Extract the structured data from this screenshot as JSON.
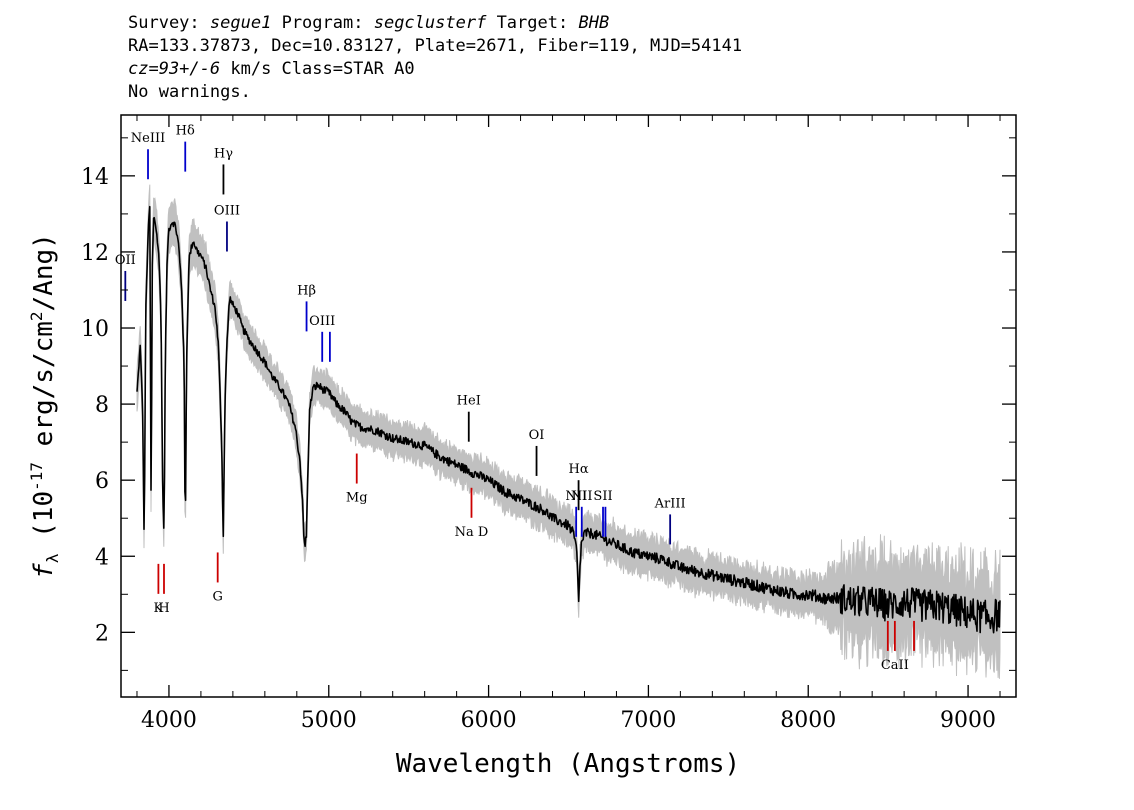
{
  "header": {
    "survey_label": "Survey:",
    "survey": "segue1",
    "program_label": "Program:",
    "program": "segclusterf",
    "target_label": "Target:",
    "target": "BHB",
    "line2": "RA=133.37873, Dec=10.83127, Plate=2671, Fiber=119, MJD=54141",
    "cz_label": "cz=93+/-6",
    "cz_rest": " km/s Class=STAR A0",
    "line4": "No warnings."
  },
  "chart_data": {
    "type": "line",
    "xlabel": "Wavelength (Angstroms)",
    "ylabel": "f_λ (10^-17 erg/s/cm^2/Ang)",
    "ylabel_parts": {
      "f": "f",
      "lambda": "λ",
      "base": " (10",
      "exp1": "-17",
      "mid": " erg/s/cm",
      "exp2": "2",
      "tail": "/Ang)"
    },
    "xlim": [
      3700,
      9300
    ],
    "ylim": [
      0.3,
      15.6
    ],
    "xticks": [
      4000,
      5000,
      6000,
      7000,
      8000,
      9000
    ],
    "xtick_labels": [
      "4000",
      "5000",
      "6000",
      "7000",
      "8000",
      "9000"
    ],
    "yticks": [
      2,
      4,
      6,
      8,
      10,
      12,
      14
    ],
    "ytick_labels": [
      "2",
      "4",
      "6",
      "8",
      "10",
      "12",
      "14"
    ],
    "series": [
      {
        "role": "flux",
        "color": "#000000",
        "x": [
          3800,
          3820,
          3835,
          3845,
          3855,
          3870,
          3880,
          3889,
          3895,
          3905,
          3920,
          3935,
          3950,
          3960,
          3969,
          3978,
          3990,
          4000,
          4020,
          4040,
          4060,
          4080,
          4095,
          4102,
          4110,
          4125,
          4150,
          4180,
          4200,
          4230,
          4260,
          4290,
          4310,
          4330,
          4340,
          4350,
          4365,
          4380,
          4400,
          4430,
          4460,
          4500,
          4550,
          4600,
          4650,
          4700,
          4750,
          4790,
          4820,
          4835,
          4845,
          4852,
          4861,
          4868,
          4880,
          4900,
          4930,
          4960,
          5000,
          5050,
          5100,
          5150,
          5200,
          5300,
          5400,
          5500,
          5600,
          5700,
          5800,
          5900,
          6000,
          6100,
          6200,
          6300,
          6350,
          6400,
          6450,
          6500,
          6530,
          6550,
          6558,
          6563,
          6568,
          6580,
          6600,
          6650,
          6700,
          6800,
          6900,
          7000,
          7100,
          7200,
          7300,
          7400,
          7500,
          7600,
          7700,
          7800,
          7900,
          8000,
          8100,
          8200,
          8300,
          8400,
          8500,
          8600,
          8700,
          8800,
          8900,
          9000,
          9100,
          9150,
          9200
        ],
        "y": [
          8.3,
          9.5,
          8.0,
          4.3,
          10.5,
          12.5,
          13.2,
          4.8,
          11.5,
          13.0,
          12.6,
          12.0,
          10.5,
          6.0,
          4.5,
          9.5,
          12.0,
          12.6,
          12.8,
          12.7,
          12.2,
          11.0,
          9.0,
          4.3,
          9.0,
          11.8,
          12.3,
          12.0,
          11.9,
          11.6,
          11.0,
          10.5,
          9.5,
          7.0,
          4.5,
          8.0,
          9.8,
          10.8,
          10.6,
          10.4,
          10.0,
          9.7,
          9.4,
          9.1,
          8.7,
          8.4,
          8.0,
          7.4,
          6.5,
          5.5,
          4.4,
          4.3,
          4.6,
          6.0,
          7.8,
          8.4,
          8.5,
          8.4,
          8.3,
          8.0,
          7.8,
          7.5,
          7.4,
          7.3,
          7.1,
          7.0,
          6.9,
          6.6,
          6.4,
          6.2,
          6.0,
          5.7,
          5.5,
          5.3,
          5.2,
          5.0,
          4.9,
          4.8,
          4.6,
          4.2,
          3.5,
          2.6,
          3.4,
          4.3,
          4.6,
          4.6,
          4.5,
          4.3,
          4.1,
          4.0,
          3.9,
          3.7,
          3.6,
          3.5,
          3.4,
          3.3,
          3.2,
          3.1,
          3.0,
          3.0,
          2.9,
          2.9,
          2.8,
          2.8,
          2.7,
          2.8,
          2.7,
          2.7,
          2.6,
          2.5,
          2.4,
          2.4,
          2.5
        ]
      },
      {
        "role": "error",
        "color": "#c0c0c0",
        "band_halfwidth": [
          0.45,
          0.3,
          0.6
        ]
      }
    ],
    "line_markers": [
      {
        "label": "NeIII",
        "wave": 3869,
        "color": "#0000cc",
        "side": "top",
        "y": 14.7
      },
      {
        "label": "Hδ",
        "wave": 4102,
        "color": "#0000cc",
        "side": "top",
        "y": 14.9
      },
      {
        "label": "Hγ",
        "wave": 4341,
        "color": "#000000",
        "side": "top",
        "y": 14.3
      },
      {
        "label": "OIII",
        "wave": 4363,
        "color": "#000080",
        "side": "top",
        "y": 12.8
      },
      {
        "label": "OII",
        "wave": 3727,
        "color": "#000080",
        "side": "top",
        "y": 11.5
      },
      {
        "label": "Hβ",
        "wave": 4861,
        "color": "#0000cc",
        "side": "top",
        "y": 10.7
      },
      {
        "label": "OIII",
        "wave": 4959,
        "color": "#0000cc",
        "side": "top",
        "y": 9.9
      },
      {
        "label": "",
        "wave": 5007,
        "color": "#0000cc",
        "side": "top",
        "y": 9.9
      },
      {
        "label": "HeI",
        "wave": 5876,
        "color": "#000000",
        "side": "top",
        "y": 7.8
      },
      {
        "label": "OI",
        "wave": 6300,
        "color": "#000000",
        "side": "top",
        "y": 6.9
      },
      {
        "label": "NII",
        "wave": 6548,
        "color": "#0000cc",
        "side": "top",
        "y": 5.3
      },
      {
        "label": "Hα",
        "wave": 6563,
        "color": "#000000",
        "side": "top",
        "y": 6.0
      },
      {
        "label": "NII",
        "wave": 6583,
        "color": "#0000cc",
        "side": "top",
        "y": 5.3
      },
      {
        "label": "SII",
        "wave": 6716,
        "color": "#0000cc",
        "side": "top",
        "y": 5.3
      },
      {
        "label": "",
        "wave": 6731,
        "color": "#0000cc",
        "side": "top",
        "y": 5.3
      },
      {
        "label": "ArIII",
        "wave": 7136,
        "color": "#000080",
        "side": "top",
        "y": 5.1
      },
      {
        "label": "K",
        "wave": 3934,
        "color": "#cc0000",
        "side": "bottom",
        "y": 3.8
      },
      {
        "label": "H",
        "wave": 3969,
        "color": "#cc0000",
        "side": "bottom",
        "y": 3.8
      },
      {
        "label": "G",
        "wave": 4305,
        "color": "#cc0000",
        "side": "bottom",
        "y": 4.1
      },
      {
        "label": "Mg",
        "wave": 5175,
        "color": "#cc0000",
        "side": "bottom",
        "y": 6.7
      },
      {
        "label": "Na D",
        "wave": 5893,
        "color": "#cc0000",
        "side": "bottom",
        "y": 5.8
      },
      {
        "label": "",
        "wave": 8498,
        "color": "#cc0000",
        "side": "bottom",
        "y": 2.3
      },
      {
        "label": "CaII",
        "wave": 8542,
        "color": "#cc0000",
        "side": "bottom",
        "y": 2.3
      },
      {
        "label": "",
        "wave": 8662,
        "color": "#cc0000",
        "side": "bottom",
        "y": 2.3
      }
    ]
  }
}
